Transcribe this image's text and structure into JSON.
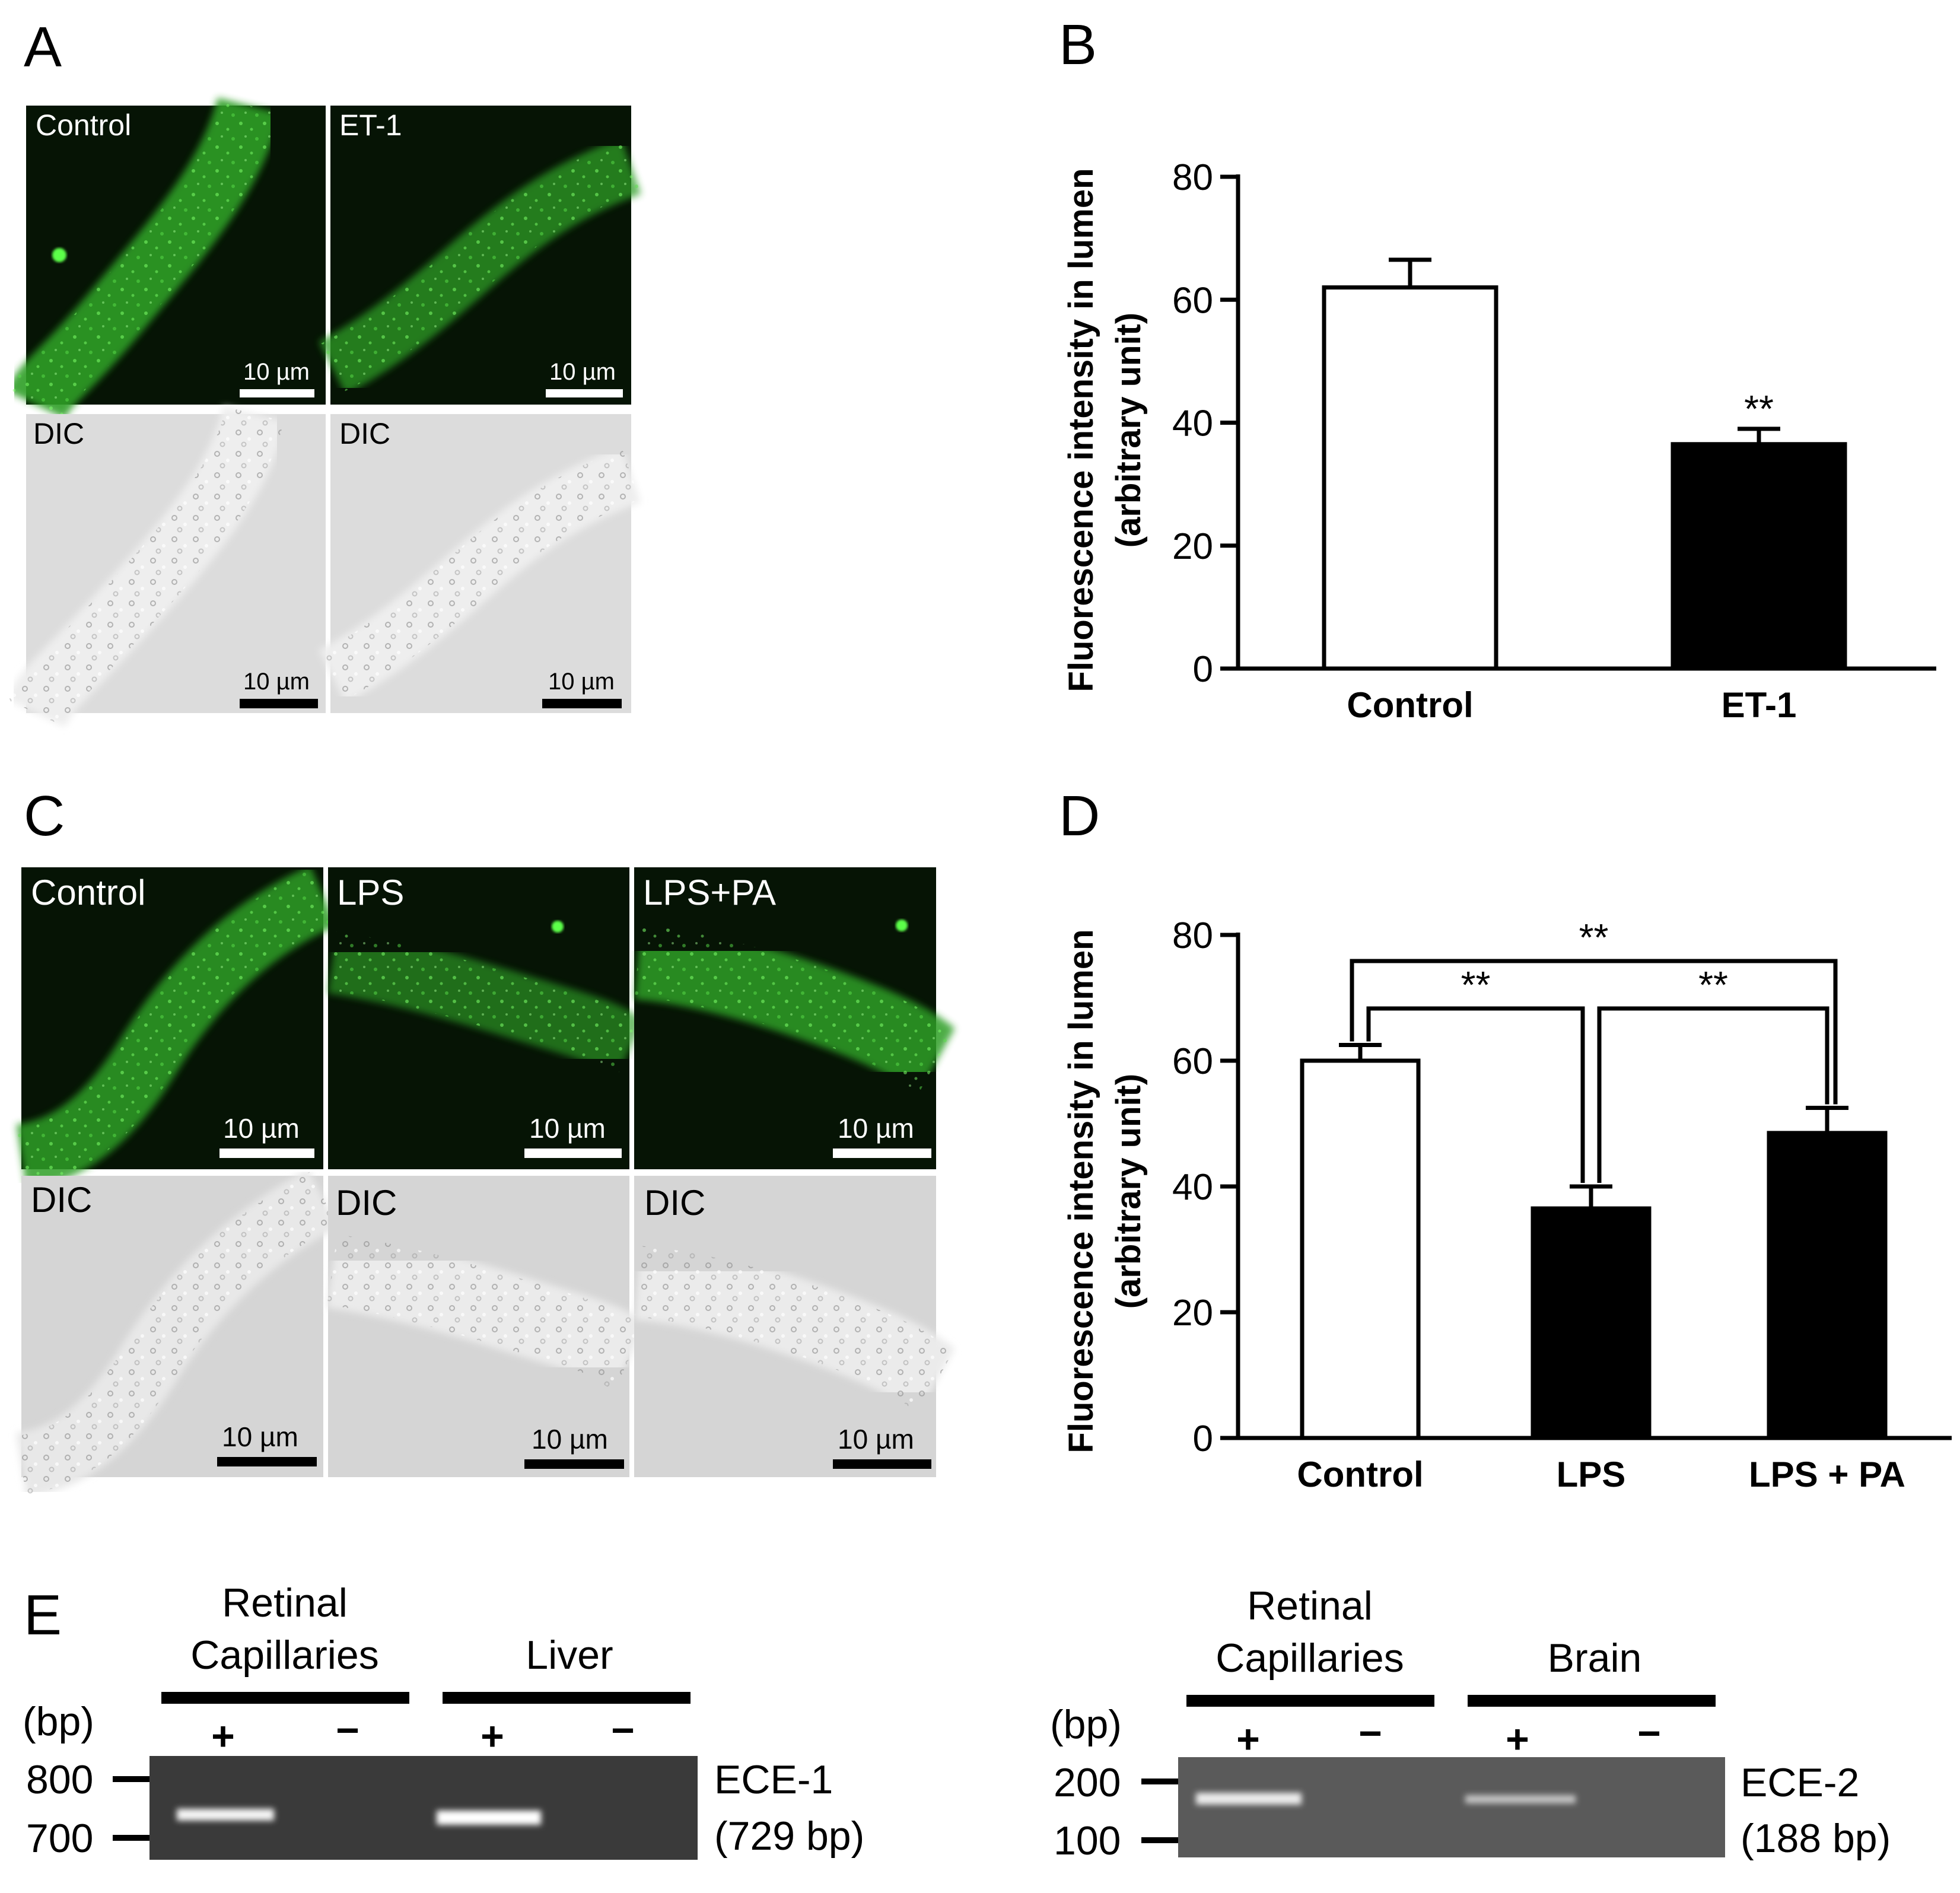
{
  "panels": {
    "A": "A",
    "B": "B",
    "C": "C",
    "D": "D",
    "E": "E"
  },
  "images_a": [
    {
      "label": "Control",
      "scale": "10 µm",
      "type": "fluo"
    },
    {
      "label": "ET-1",
      "scale": "10 µm",
      "type": "fluo"
    },
    {
      "label": "DIC",
      "scale": "10 µm",
      "type": "dic"
    },
    {
      "label": "DIC",
      "scale": "10 µm",
      "type": "dic"
    }
  ],
  "images_c": [
    {
      "label": "Control",
      "scale": "10 µm",
      "type": "fluo"
    },
    {
      "label": "LPS",
      "scale": "10 µm",
      "type": "fluo"
    },
    {
      "label": "LPS+PA",
      "scale": "10 µm",
      "type": "fluo"
    },
    {
      "label": "DIC",
      "scale": "10 µm",
      "type": "dic"
    },
    {
      "label": "DIC",
      "scale": "10 µm",
      "type": "dic"
    },
    {
      "label": "DIC",
      "scale": "10 µm",
      "type": "dic"
    }
  ],
  "colors": {
    "fluo_bg": "#0a1a08",
    "fluo_signal": "#39c92e",
    "dic_bg": "#d9d9d9",
    "bar_control": "#ffffff",
    "bar_treated": "#000000"
  },
  "chart_data": [
    {
      "panel": "B",
      "type": "bar",
      "categories": [
        "Control",
        "ET-1"
      ],
      "values": [
        62,
        36.5
      ],
      "errors": [
        4.5,
        2.5
      ],
      "significance": [
        "",
        "**"
      ],
      "ylabel_line1": "Fluorescence intensity in lumen",
      "ylabel_line2": "(arbitrary unit)",
      "ylim": [
        0,
        80
      ],
      "yticks": [
        0,
        20,
        40,
        60,
        80
      ]
    },
    {
      "panel": "D",
      "type": "bar",
      "categories": [
        "Control",
        "LPS",
        "LPS + PA"
      ],
      "values": [
        60,
        36.5,
        48.5
      ],
      "errors": [
        2.5,
        3.5,
        4
      ],
      "comparisons": [
        {
          "from": 0,
          "to": 2,
          "label": "**"
        },
        {
          "from": 0,
          "to": 1,
          "label": "**"
        },
        {
          "from": 1,
          "to": 2,
          "label": "**"
        }
      ],
      "ylabel_line1": "Fluorescence intensity in lumen",
      "ylabel_line2": "(arbitrary unit)",
      "ylim": [
        0,
        80
      ],
      "yticks": [
        0,
        20,
        40,
        60,
        80
      ]
    }
  ],
  "gels": [
    {
      "groups": [
        {
          "line1": "Retinal",
          "line2": "Capillaries"
        },
        {
          "line1": "",
          "line2": "Liver"
        }
      ],
      "lanes": [
        "+",
        "−",
        "+",
        "−"
      ],
      "unit": "(bp)",
      "markers": [
        "800",
        "700"
      ],
      "gene": "ECE-1",
      "size": "(729 bp)",
      "band_intensity": [
        0.9,
        0,
        1.0,
        0
      ]
    },
    {
      "groups": [
        {
          "line1": "Retinal",
          "line2": "Capillaries"
        },
        {
          "line1": "",
          "line2": "Brain"
        }
      ],
      "lanes": [
        "+",
        "−",
        "+",
        "−"
      ],
      "unit": "(bp)",
      "markers": [
        "200",
        "100"
      ],
      "gene": "ECE-2",
      "size": "(188 bp)",
      "band_intensity": [
        0.85,
        0,
        0.55,
        0
      ]
    }
  ]
}
